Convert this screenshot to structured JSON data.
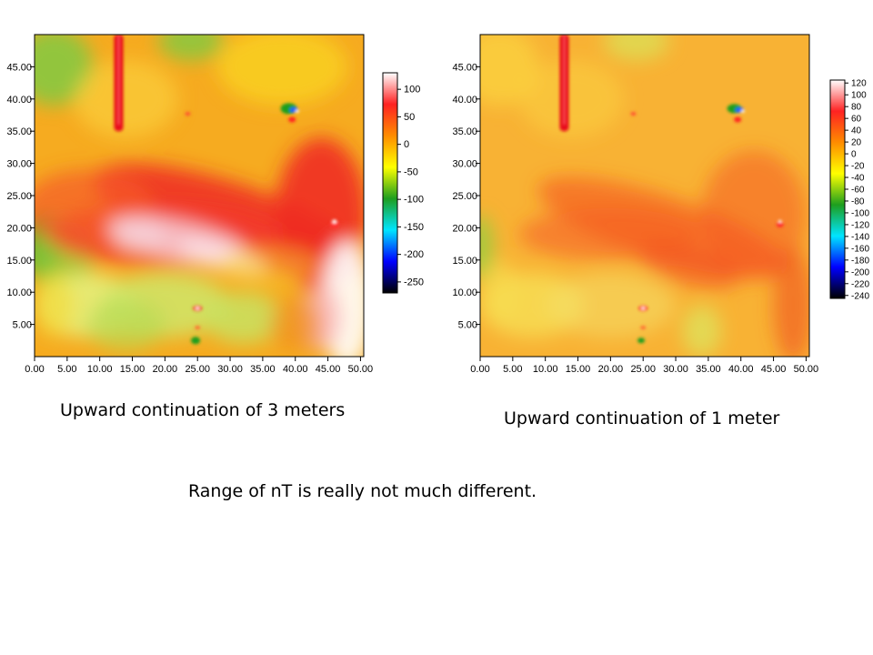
{
  "slide": {
    "caption_left": "Upward continuation of 3 meters",
    "caption_right": "Upward continuation of 1 meter",
    "note": "Range of nT is really not much different."
  },
  "chart_data": [
    {
      "type": "heatmap",
      "title": "",
      "xlabel": "",
      "ylabel": "",
      "xlim": [
        0,
        50.5
      ],
      "ylim": [
        0,
        50
      ],
      "x_ticks": [
        "0.00",
        "5.00",
        "10.00",
        "15.00",
        "20.00",
        "25.00",
        "30.00",
        "35.00",
        "40.00",
        "45.00",
        "50.00"
      ],
      "y_ticks": [
        "5.00",
        "10.00",
        "15.00",
        "20.00",
        "25.00",
        "30.00",
        "35.00",
        "40.00",
        "45.00"
      ],
      "colorbar": {
        "range": [
          -270,
          130
        ],
        "ticks": [
          "100",
          "50",
          "0",
          "-50",
          "-100",
          "-150",
          "-200",
          "-250"
        ],
        "colors": [
          "#ffffff",
          "#ff2222",
          "#ff8c00",
          "#ffff00",
          "#1e9e1e",
          "#00e5ff",
          "#0000ff",
          "#000000"
        ]
      }
    },
    {
      "type": "heatmap",
      "title": "",
      "xlabel": "",
      "ylabel": "",
      "xlim": [
        0,
        50.5
      ],
      "ylim": [
        0,
        50
      ],
      "x_ticks": [
        "0.00",
        "5.00",
        "10.00",
        "15.00",
        "20.00",
        "25.00",
        "30.00",
        "35.00",
        "40.00",
        "45.00",
        "50.00"
      ],
      "y_ticks": [
        "5.00",
        "10.00",
        "15.00",
        "20.00",
        "25.00",
        "30.00",
        "35.00",
        "40.00",
        "45.00"
      ],
      "colorbar": {
        "range": [
          -245,
          125
        ],
        "ticks": [
          "120",
          "100",
          "80",
          "60",
          "40",
          "20",
          "0",
          "-20",
          "-40",
          "-60",
          "-80",
          "-100",
          "-120",
          "-140",
          "-160",
          "-180",
          "-200",
          "-220",
          "-240"
        ],
        "colors": [
          "#ffffff",
          "#ff2222",
          "#ff8c00",
          "#ffff00",
          "#1e9e1e",
          "#00e5ff",
          "#0000ff",
          "#000000"
        ]
      }
    }
  ]
}
